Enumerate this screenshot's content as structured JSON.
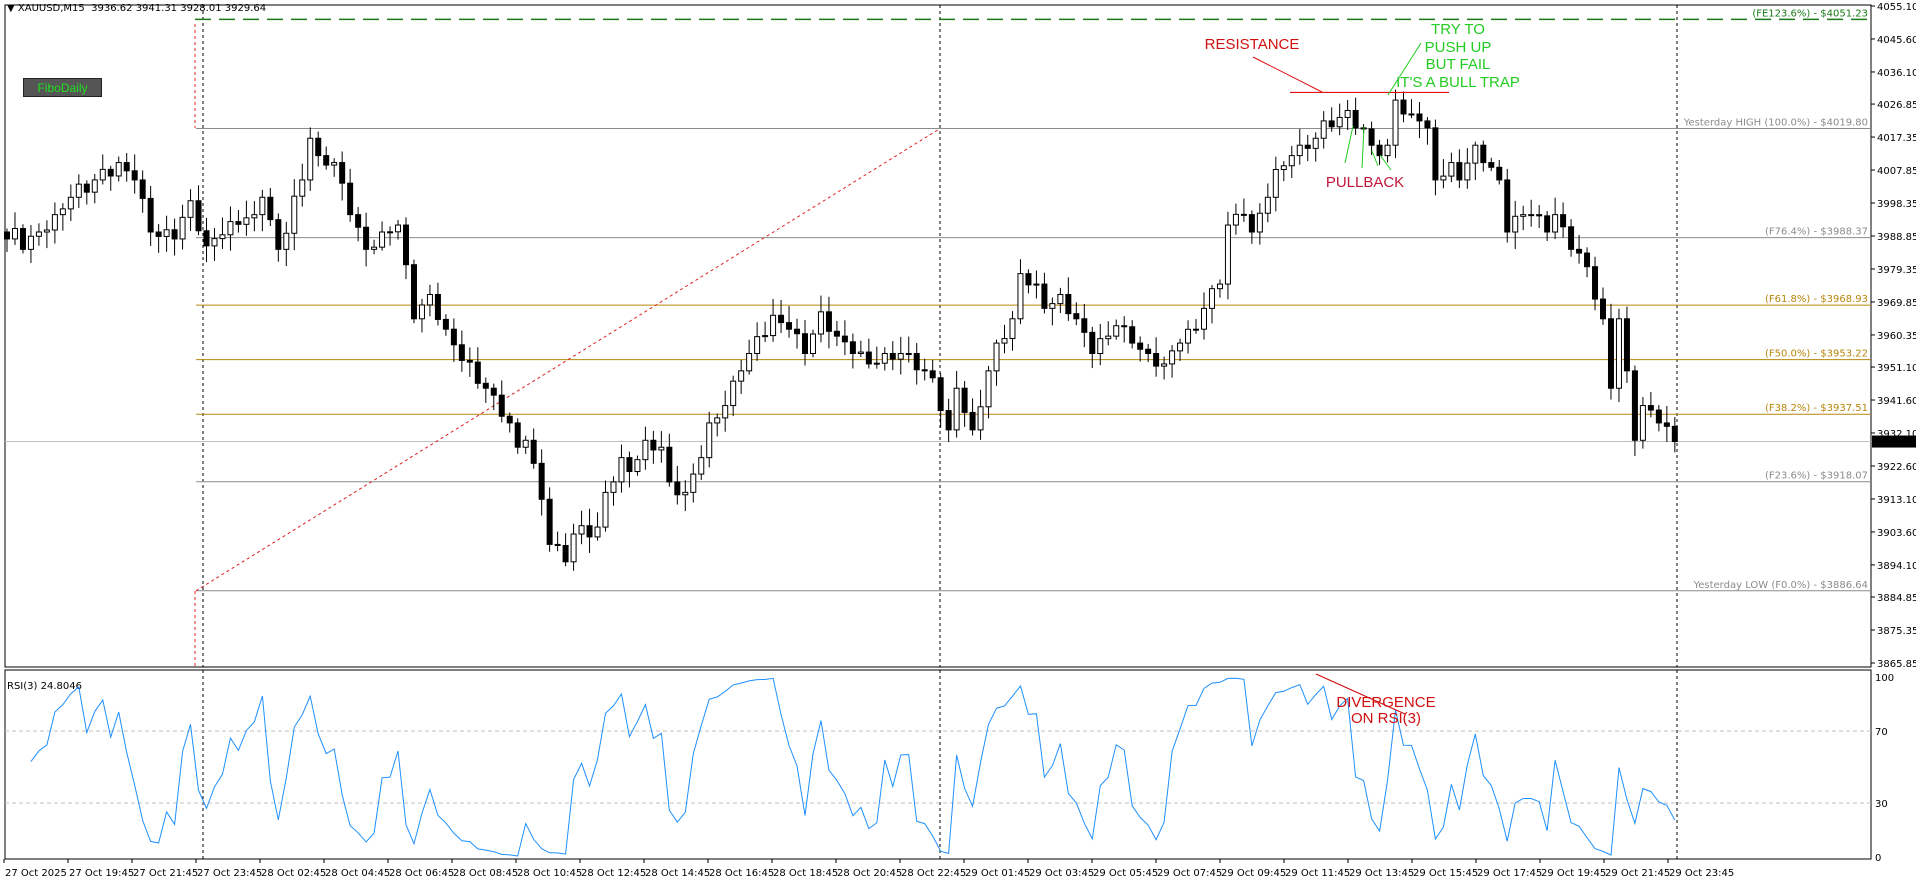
{
  "header": {
    "symbol": "XAUUSD,M15",
    "ohlc": "3936.62 3941.31 3928.01 3929.64"
  },
  "fibo_button": "FiboDaily",
  "price_axis": [
    "4055.10",
    "4045.60",
    "4036.10",
    "4026.85",
    "4017.35",
    "4007.85",
    "3998.35",
    "3988.85",
    "3979.35",
    "3969.85",
    "3960.35",
    "3951.10",
    "3941.60",
    "3932.10",
    "3922.60",
    "3913.10",
    "3903.60",
    "3894.10",
    "3884.85",
    "3875.35",
    "3865.85"
  ],
  "current_price": "3929.64",
  "fib_levels": [
    {
      "label": "(FE123.6%) -  $4051.23",
      "price": 4051.23,
      "color": "#1a7a1a",
      "style": "dashed"
    },
    {
      "label": "Yesterday HIGH (100.0%) -  $4019.80",
      "price": 4019.8,
      "color": "#8c8c8c",
      "style": "solid"
    },
    {
      "label": "(F76.4%) -  $3988.37",
      "price": 3988.37,
      "color": "#8c8c8c",
      "style": "solid"
    },
    {
      "label": "(F61.8%) -  $3968.93",
      "price": 3968.93,
      "color": "#b8860b",
      "style": "solid"
    },
    {
      "label": "(F50.0%) -  $3953.22",
      "price": 3953.22,
      "color": "#b8860b",
      "style": "solid"
    },
    {
      "label": "(F38.2%) -  $3937.51",
      "price": 3937.51,
      "color": "#b8860b",
      "style": "solid"
    },
    {
      "label": "(F23.6%) -  $3918.07",
      "price": 3918.07,
      "color": "#8c8c8c",
      "style": "solid"
    },
    {
      "label": "Yesterday LOW (F0.0%) -  $3886.64",
      "price": 3886.64,
      "color": "#8c8c8c",
      "style": "solid"
    }
  ],
  "rsi": {
    "label": "RSI(3) 24.8046",
    "axis": [
      "100",
      "70",
      "30",
      "0"
    ],
    "levels": [
      70,
      30
    ],
    "color": "#1e90ff"
  },
  "time_axis": [
    "27 Oct 2025",
    "27 Oct 19:45",
    "27 Oct 21:45",
    "27 Oct 23:45",
    "28 Oct 02:45",
    "28 Oct 04:45",
    "28 Oct 06:45",
    "28 Oct 08:45",
    "28 Oct 10:45",
    "28 Oct 12:45",
    "28 Oct 14:45",
    "28 Oct 16:45",
    "28 Oct 18:45",
    "28 Oct 20:45",
    "28 Oct 22:45",
    "29 Oct 01:45",
    "29 Oct 03:45",
    "29 Oct 05:45",
    "29 Oct 07:45",
    "29 Oct 09:45",
    "29 Oct 11:45",
    "29 Oct 13:45",
    "29 Oct 15:45",
    "29 Oct 17:45",
    "29 Oct 19:45",
    "29 Oct 21:45",
    "29 Oct 23:45"
  ],
  "annotations": {
    "resistance": "RESISTANCE",
    "bull_trap": [
      "TRY TO",
      "PUSH UP",
      "BUT  FAIL",
      "IT'S  A  BULL  TRAP"
    ],
    "pullback": "PULLBACK",
    "divergence": [
      "DIVERGENCE",
      "ON  RSI(3)"
    ],
    "resistance_price": 4030.2
  },
  "candle_keypoints": [
    [
      0,
      3988
    ],
    [
      1,
      3991
    ],
    [
      2,
      3985
    ],
    [
      4,
      3990
    ],
    [
      6,
      3995
    ],
    [
      8,
      4000
    ],
    [
      11,
      4005
    ],
    [
      14,
      4010
    ],
    [
      16,
      4005
    ],
    [
      18,
      3990
    ],
    [
      21,
      3988
    ],
    [
      23,
      3999
    ],
    [
      25,
      3986
    ],
    [
      28,
      3993
    ],
    [
      31,
      3995
    ],
    [
      32,
      4000
    ],
    [
      34,
      3985
    ],
    [
      37,
      4005
    ],
    [
      38,
      4017
    ],
    [
      39,
      4012
    ],
    [
      41,
      4010
    ],
    [
      43,
      3995
    ],
    [
      45,
      3985
    ],
    [
      47,
      3990
    ],
    [
      49,
      3992
    ],
    [
      51,
      3965
    ],
    [
      53,
      3972
    ],
    [
      55,
      3962
    ],
    [
      57,
      3953
    ],
    [
      60,
      3945
    ],
    [
      61,
      3943
    ],
    [
      63,
      3935
    ],
    [
      64,
      3928
    ],
    [
      65,
      3930
    ],
    [
      67,
      3913
    ],
    [
      68,
      3900
    ],
    [
      70,
      3895
    ],
    [
      71,
      3903
    ],
    [
      74,
      3905
    ],
    [
      75,
      3915
    ],
    [
      77,
      3925
    ],
    [
      78,
      3921
    ],
    [
      80,
      3930
    ],
    [
      82,
      3928
    ],
    [
      83,
      3918
    ],
    [
      85,
      3915
    ],
    [
      87,
      3925
    ],
    [
      88,
      3935
    ],
    [
      90,
      3940
    ],
    [
      92,
      3950
    ],
    [
      93,
      3955
    ],
    [
      96,
      3966
    ],
    [
      98,
      3962
    ],
    [
      100,
      3955
    ],
    [
      102,
      3967
    ],
    [
      104,
      3960
    ],
    [
      106,
      3955
    ],
    [
      108,
      3952
    ],
    [
      110,
      3955
    ],
    [
      113,
      3955
    ],
    [
      115,
      3950
    ],
    [
      116,
      3948
    ],
    [
      118,
      3933
    ],
    [
      119,
      3945
    ],
    [
      121,
      3933
    ],
    [
      123,
      3950
    ],
    [
      124,
      3958
    ],
    [
      126,
      3965
    ],
    [
      127,
      3978
    ],
    [
      129,
      3975
    ],
    [
      130,
      3968
    ],
    [
      132,
      3972
    ],
    [
      134,
      3965
    ],
    [
      136,
      3955
    ],
    [
      138,
      3960
    ],
    [
      139,
      3963
    ],
    [
      141,
      3958
    ],
    [
      143,
      3955
    ],
    [
      145,
      3952
    ],
    [
      147,
      3958
    ],
    [
      149,
      3962
    ],
    [
      150,
      3968
    ],
    [
      152,
      3975
    ],
    [
      153,
      3992
    ],
    [
      155,
      3995
    ],
    [
      156,
      3990
    ],
    [
      158,
      4000
    ],
    [
      159,
      4008
    ],
    [
      161,
      4012
    ],
    [
      162,
      4015
    ],
    [
      164,
      4017
    ],
    [
      165,
      4022
    ],
    [
      167,
      4023
    ],
    [
      168,
      4025
    ],
    [
      169,
      4020
    ],
    [
      171,
      4015
    ],
    [
      172,
      4012
    ],
    [
      173,
      4015
    ],
    [
      174,
      4028
    ],
    [
      175,
      4024
    ],
    [
      177,
      4022
    ],
    [
      178,
      4020
    ],
    [
      179,
      4005
    ],
    [
      181,
      4010
    ],
    [
      182,
      4005
    ],
    [
      184,
      4015
    ],
    [
      185,
      4010
    ],
    [
      187,
      4005
    ],
    [
      188,
      3990
    ],
    [
      190,
      3995
    ],
    [
      191,
      3995
    ],
    [
      193,
      3990
    ],
    [
      194,
      3995
    ],
    [
      196,
      3985
    ],
    [
      198,
      3980
    ],
    [
      200,
      3965
    ],
    [
      201,
      3945
    ],
    [
      202,
      3965
    ],
    [
      203,
      3950
    ],
    [
      204,
      3930
    ],
    [
      205,
      3940
    ],
    [
      207,
      3935
    ],
    [
      209,
      3929.64
    ]
  ]
}
